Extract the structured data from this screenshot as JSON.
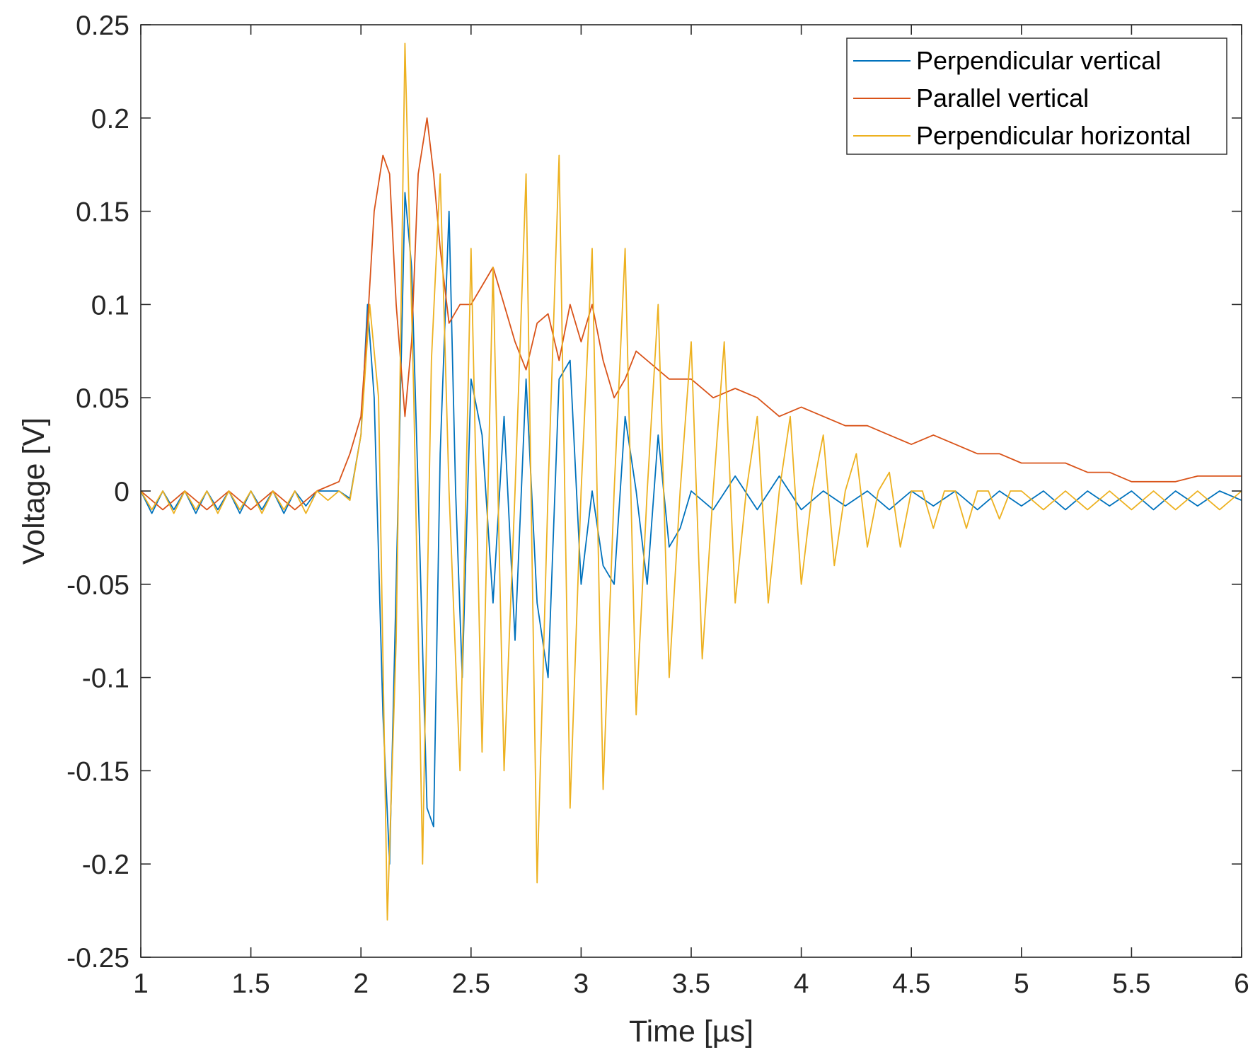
{
  "chart_data": {
    "type": "line",
    "title": "",
    "xlabel": "Time [µs]",
    "ylabel": "Voltage [V]",
    "xlim": [
      1,
      6
    ],
    "ylim": [
      -0.25,
      0.25
    ],
    "xticks": [
      1,
      1.5,
      2,
      2.5,
      3,
      3.5,
      4,
      4.5,
      5,
      5.5,
      6
    ],
    "xtick_labels": [
      "1",
      "1.5",
      "2",
      "2.5",
      "3",
      "3.5",
      "4",
      "4.5",
      "5",
      "5.5",
      "6"
    ],
    "yticks": [
      -0.25,
      -0.2,
      -0.15,
      -0.1,
      -0.05,
      0,
      0.05,
      0.1,
      0.15,
      0.2,
      0.25
    ],
    "ytick_labels": [
      "-0.25",
      "-0.2",
      "-0.15",
      "-0.1",
      "-0.05",
      "0",
      "0.05",
      "0.1",
      "0.15",
      "0.2",
      "0.25"
    ],
    "grid": false,
    "legend_position": "top-right",
    "series": [
      {
        "name": "Perpendicular vertical",
        "color": "#0072BD",
        "x": [
          1.0,
          1.05,
          1.1,
          1.15,
          1.2,
          1.25,
          1.3,
          1.35,
          1.4,
          1.45,
          1.5,
          1.55,
          1.6,
          1.65,
          1.7,
          1.75,
          1.8,
          1.85,
          1.9,
          1.95,
          2.0,
          2.03,
          2.06,
          2.1,
          2.13,
          2.16,
          2.2,
          2.23,
          2.26,
          2.3,
          2.33,
          2.36,
          2.4,
          2.43,
          2.46,
          2.5,
          2.55,
          2.6,
          2.65,
          2.7,
          2.75,
          2.8,
          2.85,
          2.9,
          2.95,
          3.0,
          3.05,
          3.1,
          3.15,
          3.2,
          3.25,
          3.3,
          3.35,
          3.4,
          3.45,
          3.5,
          3.6,
          3.7,
          3.8,
          3.9,
          4.0,
          4.1,
          4.2,
          4.3,
          4.4,
          4.5,
          4.6,
          4.7,
          4.8,
          4.9,
          5.0,
          5.1,
          5.2,
          5.3,
          5.4,
          5.5,
          5.6,
          5.7,
          5.8,
          5.9,
          6.0
        ],
        "values": [
          0.0,
          -0.012,
          0.0,
          -0.01,
          0.0,
          -0.012,
          0.0,
          -0.01,
          0.0,
          -0.012,
          0.0,
          -0.01,
          0.0,
          -0.012,
          0.0,
          -0.008,
          0.0,
          0.0,
          0.0,
          -0.004,
          0.03,
          0.1,
          0.05,
          -0.12,
          -0.2,
          -0.05,
          0.16,
          0.12,
          0.0,
          -0.17,
          -0.18,
          0.02,
          0.15,
          0.0,
          -0.1,
          0.06,
          0.03,
          -0.06,
          0.04,
          -0.08,
          0.06,
          -0.06,
          -0.1,
          0.06,
          0.07,
          -0.05,
          0.0,
          -0.04,
          -0.05,
          0.04,
          0.0,
          -0.05,
          0.03,
          -0.03,
          -0.02,
          0.0,
          -0.01,
          0.008,
          -0.01,
          0.008,
          -0.01,
          0.0,
          -0.008,
          0.0,
          -0.01,
          0.0,
          -0.008,
          0.0,
          -0.01,
          0.0,
          -0.008,
          0.0,
          -0.01,
          0.0,
          -0.008,
          0.0,
          -0.01,
          0.0,
          -0.008,
          0.0,
          -0.005
        ]
      },
      {
        "name": "Parallel vertical",
        "color": "#D95319",
        "x": [
          1.0,
          1.1,
          1.2,
          1.3,
          1.4,
          1.5,
          1.6,
          1.7,
          1.8,
          1.9,
          1.95,
          2.0,
          2.03,
          2.06,
          2.1,
          2.13,
          2.16,
          2.2,
          2.23,
          2.26,
          2.3,
          2.33,
          2.36,
          2.4,
          2.45,
          2.5,
          2.55,
          2.6,
          2.65,
          2.7,
          2.75,
          2.8,
          2.85,
          2.9,
          2.95,
          3.0,
          3.05,
          3.1,
          3.15,
          3.2,
          3.25,
          3.3,
          3.35,
          3.4,
          3.5,
          3.6,
          3.7,
          3.8,
          3.9,
          4.0,
          4.1,
          4.2,
          4.3,
          4.4,
          4.5,
          4.6,
          4.7,
          4.8,
          4.9,
          5.0,
          5.1,
          5.2,
          5.3,
          5.4,
          5.5,
          5.6,
          5.7,
          5.8,
          5.9,
          6.0
        ],
        "values": [
          0.0,
          -0.01,
          0.0,
          -0.01,
          0.0,
          -0.01,
          0.0,
          -0.01,
          0.0,
          0.005,
          0.02,
          0.04,
          0.09,
          0.15,
          0.18,
          0.17,
          0.1,
          0.04,
          0.08,
          0.17,
          0.2,
          0.17,
          0.13,
          0.09,
          0.1,
          0.1,
          0.11,
          0.12,
          0.1,
          0.08,
          0.065,
          0.09,
          0.095,
          0.07,
          0.1,
          0.08,
          0.1,
          0.07,
          0.05,
          0.06,
          0.075,
          0.07,
          0.065,
          0.06,
          0.06,
          0.05,
          0.055,
          0.05,
          0.04,
          0.045,
          0.04,
          0.035,
          0.035,
          0.03,
          0.025,
          0.03,
          0.025,
          0.02,
          0.02,
          0.015,
          0.015,
          0.015,
          0.01,
          0.01,
          0.005,
          0.005,
          0.005,
          0.008,
          0.008,
          0.008
        ]
      },
      {
        "name": "Perpendicular horizontal",
        "color": "#EDB120",
        "x": [
          1.0,
          1.05,
          1.1,
          1.15,
          1.2,
          1.25,
          1.3,
          1.35,
          1.4,
          1.45,
          1.5,
          1.55,
          1.6,
          1.65,
          1.7,
          1.75,
          1.8,
          1.85,
          1.9,
          1.95,
          2.0,
          2.04,
          2.08,
          2.12,
          2.16,
          2.2,
          2.24,
          2.28,
          2.32,
          2.36,
          2.4,
          2.45,
          2.5,
          2.55,
          2.6,
          2.65,
          2.7,
          2.75,
          2.8,
          2.85,
          2.9,
          2.95,
          3.0,
          3.05,
          3.1,
          3.15,
          3.2,
          3.25,
          3.3,
          3.35,
          3.4,
          3.45,
          3.5,
          3.55,
          3.6,
          3.65,
          3.7,
          3.75,
          3.8,
          3.85,
          3.9,
          3.95,
          4.0,
          4.05,
          4.1,
          4.15,
          4.2,
          4.25,
          4.3,
          4.35,
          4.4,
          4.45,
          4.5,
          4.55,
          4.6,
          4.65,
          4.7,
          4.75,
          4.8,
          4.85,
          4.9,
          4.95,
          5.0,
          5.1,
          5.2,
          5.3,
          5.4,
          5.5,
          5.6,
          5.7,
          5.8,
          5.9,
          6.0
        ],
        "values": [
          0.0,
          -0.01,
          0.0,
          -0.012,
          0.0,
          -0.01,
          0.0,
          -0.012,
          0.0,
          -0.01,
          0.0,
          -0.012,
          0.0,
          -0.01,
          0.0,
          -0.012,
          0.0,
          -0.005,
          0.0,
          -0.005,
          0.03,
          0.1,
          0.05,
          -0.23,
          -0.08,
          0.24,
          0.05,
          -0.2,
          0.07,
          0.17,
          0.0,
          -0.15,
          0.13,
          -0.14,
          0.12,
          -0.15,
          0.0,
          0.17,
          -0.21,
          0.0,
          0.18,
          -0.17,
          0.0,
          0.13,
          -0.16,
          0.0,
          0.13,
          -0.12,
          0.0,
          0.1,
          -0.1,
          0.0,
          0.08,
          -0.09,
          0.0,
          0.08,
          -0.06,
          0.0,
          0.04,
          -0.06,
          0.0,
          0.04,
          -0.05,
          0.0,
          0.03,
          -0.04,
          0.0,
          0.02,
          -0.03,
          0.0,
          0.01,
          -0.03,
          0.0,
          0.0,
          -0.02,
          0.0,
          0.0,
          -0.02,
          0.0,
          0.0,
          -0.015,
          0.0,
          0.0,
          -0.01,
          0.0,
          -0.01,
          0.0,
          -0.01,
          0.0,
          -0.01,
          0.0,
          -0.01,
          0.0
        ]
      }
    ]
  }
}
